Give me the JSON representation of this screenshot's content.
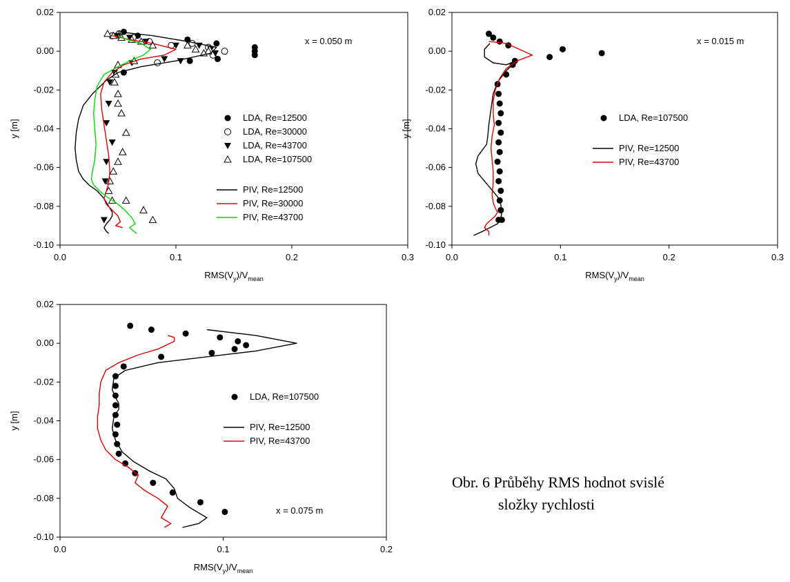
{
  "caption": {
    "line1": "Obr. 6 Průběhy RMS hodnot svislé",
    "line2": "složky rychlosti"
  },
  "chart_data": [
    {
      "type": "line",
      "xlabel": "RMS(V",
      "xlabel_sub1": "y",
      "xlabel_mid": ")/V",
      "xlabel_sub2": "mean",
      "ylabel": "y [m]",
      "xlim": [
        0,
        0.3
      ],
      "ylim": [
        -0.1,
        0.02
      ],
      "xticks": [
        "0.0",
        "0.1",
        "0.2",
        "0.3"
      ],
      "yticks": [
        "0.02",
        "0.00",
        "-0.02",
        "-0.04",
        "-0.06",
        "-0.08",
        "-0.10"
      ],
      "annotation": "x = 0.050 m",
      "legend_position": "right",
      "grid": false,
      "series": [
        {
          "name": "LDA, Re=12500",
          "kind": "scatter",
          "marker": "filled-circle",
          "color": "#000000",
          "x": [
            0.046,
            0.055,
            0.067,
            0.077,
            0.11,
            0.135,
            0.168,
            0.168,
            0.168,
            0.112,
            0.136,
            0.055
          ],
          "y": [
            0.008,
            0.01,
            0.008,
            0.005,
            0.006,
            0.004,
            0.002,
            0.0,
            -0.002,
            -0.005,
            -0.004,
            -0.011
          ]
        },
        {
          "name": "LDA, Re=30000",
          "kind": "scatter",
          "marker": "open-circle",
          "color": "#000000",
          "x": [
            0.045,
            0.051,
            0.063,
            0.077,
            0.096,
            0.114,
            0.128,
            0.142,
            0.132,
            0.084
          ],
          "y": [
            0.008,
            0.009,
            0.007,
            0.005,
            0.003,
            0.004,
            0.002,
            0.0,
            -0.002,
            -0.006
          ]
        },
        {
          "name": "LDA, Re=43700",
          "kind": "scatter",
          "marker": "filled-triangle-down",
          "color": "#000000",
          "x": [
            0.05,
            0.06,
            0.074,
            0.1,
            0.12,
            0.13,
            0.134,
            0.104,
            0.09,
            0.062,
            0.047,
            0.043,
            0.042,
            0.04,
            0.045,
            0.04,
            0.039,
            0.038
          ],
          "y": [
            0.008,
            0.007,
            0.005,
            0.003,
            0.003,
            0.001,
            -0.001,
            -0.005,
            -0.004,
            -0.006,
            -0.011,
            -0.016,
            -0.027,
            -0.037,
            -0.047,
            -0.057,
            -0.067,
            -0.087
          ]
        },
        {
          "name": "LDA, Re=107500",
          "kind": "scatter",
          "marker": "open-triangle-up",
          "color": "#000000",
          "x": [
            0.041,
            0.046,
            0.053,
            0.062,
            0.07,
            0.08,
            0.11,
            0.117,
            0.129,
            0.128,
            0.124,
            0.064,
            0.05,
            0.048,
            0.047,
            0.05,
            0.05,
            0.053,
            0.057,
            0.054,
            0.05,
            0.046,
            0.043,
            0.042,
            0.045,
            0.057,
            0.072,
            0.08
          ],
          "y": [
            0.009,
            0.008,
            0.007,
            0.006,
            0.005,
            0.003,
            0.003,
            0.001,
            0.001,
            0.0,
            -0.001,
            -0.005,
            -0.007,
            -0.012,
            -0.016,
            -0.022,
            -0.027,
            -0.032,
            -0.042,
            -0.052,
            -0.057,
            -0.062,
            -0.067,
            -0.072,
            -0.077,
            -0.077,
            -0.082,
            -0.087
          ]
        },
        {
          "name": "PIV, Re=12500",
          "kind": "line",
          "color": "#000000",
          "x": [
            0.05,
            0.08,
            0.11,
            0.135,
            0.13,
            0.1,
            0.07,
            0.05,
            0.04,
            0.028,
            0.02,
            0.016,
            0.014,
            0.013,
            0.014,
            0.016,
            0.02,
            0.025,
            0.032,
            0.038,
            0.042,
            0.045,
            0.045,
            0.043,
            0.04,
            0.038,
            0.04,
            0.042
          ],
          "y": [
            0.01,
            0.008,
            0.005,
            0.002,
            -0.001,
            -0.005,
            -0.008,
            -0.011,
            -0.015,
            -0.022,
            -0.028,
            -0.035,
            -0.042,
            -0.05,
            -0.056,
            -0.062,
            -0.066,
            -0.069,
            -0.072,
            -0.076,
            -0.08,
            -0.083,
            -0.085,
            -0.087,
            -0.089,
            -0.091,
            -0.093,
            -0.094
          ]
        },
        {
          "name": "PIV, Re=30000",
          "kind": "line",
          "color": "#e00000",
          "x": [
            0.045,
            0.06,
            0.08,
            0.1,
            0.09,
            0.07,
            0.055,
            0.045,
            0.038,
            0.035,
            0.036,
            0.038,
            0.04,
            0.042,
            0.043,
            0.042,
            0.04,
            0.038,
            0.04,
            0.045,
            0.05,
            0.052,
            0.048,
            0.054
          ],
          "y": [
            0.008,
            0.006,
            0.004,
            0.001,
            -0.002,
            -0.004,
            -0.007,
            -0.011,
            -0.016,
            -0.022,
            -0.03,
            -0.038,
            -0.046,
            -0.054,
            -0.062,
            -0.068,
            -0.072,
            -0.076,
            -0.079,
            -0.082,
            -0.085,
            -0.088,
            -0.09,
            -0.091
          ]
        },
        {
          "name": "PIV, Re=43700",
          "kind": "line",
          "color": "#00dd00",
          "x": [
            0.05,
            0.058,
            0.07,
            0.078,
            0.072,
            0.06,
            0.05,
            0.038,
            0.032,
            0.03,
            0.029,
            0.03,
            0.031,
            0.03,
            0.028,
            0.027,
            0.029,
            0.034,
            0.04,
            0.048,
            0.056,
            0.062,
            0.065,
            0.06,
            0.066
          ],
          "y": [
            0.008,
            0.006,
            0.004,
            0.001,
            -0.002,
            -0.005,
            -0.008,
            -0.012,
            -0.018,
            -0.025,
            -0.032,
            -0.04,
            -0.048,
            -0.056,
            -0.062,
            -0.066,
            -0.069,
            -0.072,
            -0.075,
            -0.078,
            -0.082,
            -0.086,
            -0.089,
            -0.091,
            -0.094
          ]
        }
      ]
    },
    {
      "type": "line",
      "xlabel": "RMS(V",
      "xlabel_sub1": "y",
      "xlabel_mid": ")/V",
      "xlabel_sub2": "mean",
      "ylabel": "y [m]",
      "xlim": [
        0,
        0.3
      ],
      "ylim": [
        -0.1,
        0.02
      ],
      "xticks": [
        "0.0",
        "0.1",
        "0.2",
        "0.3"
      ],
      "yticks": [
        "0.02",
        "0.00",
        "-0.02",
        "-0.04",
        "-0.06",
        "-0.08",
        "-0.10"
      ],
      "annotation": "x = 0.015 m",
      "legend_position": "right",
      "grid": false,
      "series": [
        {
          "name": "LDA, Re=107500",
          "kind": "scatter",
          "marker": "filled-circle",
          "color": "#000000",
          "x": [
            0.034,
            0.038,
            0.044,
            0.052,
            0.09,
            0.102,
            0.138,
            0.058,
            0.056,
            0.05,
            0.042,
            0.043,
            0.044,
            0.045,
            0.043,
            0.045,
            0.043,
            0.044,
            0.042,
            0.044,
            0.043,
            0.045,
            0.044,
            0.045,
            0.046,
            0.045,
            0.043
          ],
          "y": [
            0.009,
            0.007,
            0.005,
            0.003,
            -0.003,
            0.001,
            -0.001,
            -0.005,
            -0.007,
            -0.012,
            -0.017,
            -0.022,
            -0.027,
            -0.032,
            -0.037,
            -0.042,
            -0.047,
            -0.052,
            -0.057,
            -0.062,
            -0.067,
            -0.072,
            -0.077,
            -0.082,
            -0.087,
            -0.082,
            -0.087
          ]
        },
        {
          "name": "PIV, Re=12500",
          "kind": "line",
          "color": "#000000",
          "x": [
            0.035,
            0.03,
            0.03,
            0.038,
            0.05,
            0.06,
            0.05,
            0.042,
            0.038,
            0.036,
            0.034,
            0.033,
            0.032,
            0.028,
            0.024,
            0.022,
            0.024,
            0.03,
            0.036,
            0.042,
            0.045,
            0.046,
            0.045,
            0.042,
            0.035,
            0.028,
            0.02
          ],
          "y": [
            0.004,
            0.001,
            -0.003,
            -0.006,
            -0.007,
            -0.005,
            -0.01,
            -0.016,
            -0.022,
            -0.03,
            -0.038,
            -0.044,
            -0.048,
            -0.051,
            -0.054,
            -0.058,
            -0.063,
            -0.067,
            -0.071,
            -0.075,
            -0.079,
            -0.083,
            -0.086,
            -0.089,
            -0.091,
            -0.093,
            -0.095
          ]
        },
        {
          "name": "PIV, Re=43700",
          "kind": "line",
          "color": "#e00000",
          "x": [
            0.034,
            0.05,
            0.074,
            0.06,
            0.05,
            0.044,
            0.04,
            0.038,
            0.038,
            0.039,
            0.037,
            0.036,
            0.037,
            0.038,
            0.038,
            0.037,
            0.038,
            0.04,
            0.042,
            0.04,
            0.036,
            0.032,
            0.03,
            0.034,
            0.034
          ],
          "y": [
            0.005,
            0.004,
            -0.002,
            -0.005,
            -0.009,
            -0.014,
            -0.02,
            -0.026,
            -0.032,
            -0.038,
            -0.044,
            -0.05,
            -0.056,
            -0.062,
            -0.068,
            -0.074,
            -0.078,
            -0.081,
            -0.083,
            -0.085,
            -0.087,
            -0.089,
            -0.091,
            -0.093,
            -0.095
          ]
        }
      ]
    },
    {
      "type": "line",
      "xlabel": "RMS(V",
      "xlabel_sub1": "y",
      "xlabel_mid": ")/V",
      "xlabel_sub2": "mean",
      "ylabel": "y [m]",
      "xlim": [
        0,
        0.2
      ],
      "ylim": [
        -0.1,
        0.02
      ],
      "xticks": [
        "0.0",
        "0.1",
        "0.2"
      ],
      "yticks": [
        "0.02",
        "0.00",
        "-0.02",
        "-0.04",
        "-0.06",
        "-0.08",
        "-0.10"
      ],
      "annotation": "x = 0.075 m",
      "legend_position": "right",
      "grid": false,
      "series": [
        {
          "name": "LDA, Re=107500",
          "kind": "scatter",
          "marker": "filled-circle",
          "color": "#000000",
          "x": [
            0.043,
            0.056,
            0.077,
            0.098,
            0.109,
            0.114,
            0.107,
            0.093,
            0.062,
            0.039,
            0.034,
            0.034,
            0.034,
            0.034,
            0.034,
            0.035,
            0.034,
            0.035,
            0.036,
            0.04,
            0.046,
            0.057,
            0.069,
            0.086,
            0.101
          ],
          "y": [
            0.009,
            0.007,
            0.005,
            0.003,
            0.001,
            -0.001,
            -0.003,
            -0.005,
            -0.007,
            -0.012,
            -0.017,
            -0.022,
            -0.027,
            -0.032,
            -0.037,
            -0.042,
            -0.047,
            -0.052,
            -0.057,
            -0.062,
            -0.067,
            -0.072,
            -0.077,
            -0.082,
            -0.087
          ]
        },
        {
          "name": "PIV, Re=12500",
          "kind": "line",
          "color": "#000000",
          "x": [
            0.09,
            0.12,
            0.145,
            0.12,
            0.09,
            0.06,
            0.04,
            0.033,
            0.032,
            0.034,
            0.036,
            0.036,
            0.033,
            0.032,
            0.034,
            0.038,
            0.045,
            0.055,
            0.065,
            0.07,
            0.072,
            0.08,
            0.09,
            0.085,
            0.075
          ],
          "y": [
            0.007,
            0.004,
            0.0,
            -0.004,
            -0.007,
            -0.01,
            -0.014,
            -0.018,
            -0.024,
            -0.028,
            -0.031,
            -0.034,
            -0.038,
            -0.044,
            -0.05,
            -0.056,
            -0.061,
            -0.066,
            -0.07,
            -0.075,
            -0.08,
            -0.085,
            -0.09,
            -0.093,
            -0.095
          ]
        },
        {
          "name": "PIV, Re=43700",
          "kind": "line",
          "color": "#e00000",
          "x": [
            0.066,
            0.07,
            0.07,
            0.06,
            0.048,
            0.036,
            0.028,
            0.025,
            0.024,
            0.024,
            0.023,
            0.023,
            0.025,
            0.028,
            0.034,
            0.042,
            0.048,
            0.046,
            0.052,
            0.06,
            0.066,
            0.064,
            0.062,
            0.068,
            0.064
          ],
          "y": [
            0.004,
            0.003,
            0.001,
            -0.003,
            -0.006,
            -0.01,
            -0.014,
            -0.02,
            -0.026,
            -0.032,
            -0.038,
            -0.044,
            -0.05,
            -0.055,
            -0.06,
            -0.064,
            -0.068,
            -0.072,
            -0.076,
            -0.08,
            -0.084,
            -0.087,
            -0.09,
            -0.093,
            -0.095
          ]
        }
      ]
    }
  ]
}
